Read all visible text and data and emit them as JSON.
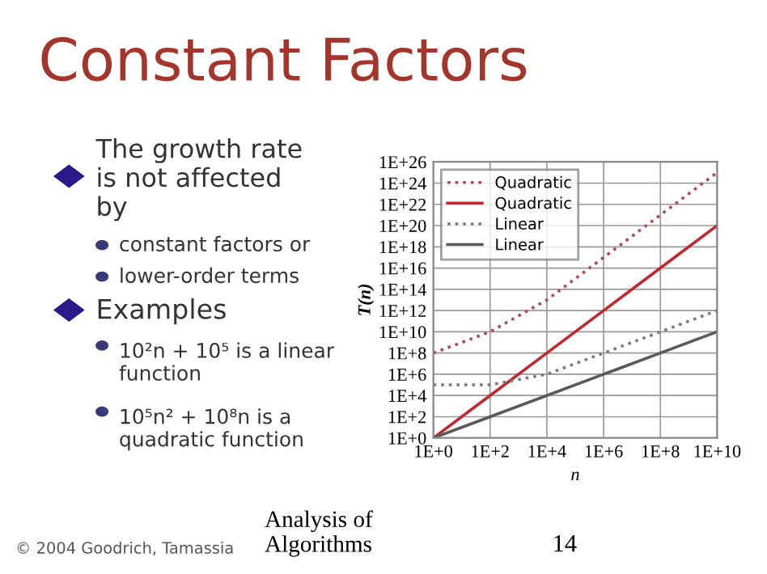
{
  "chart_data": {
    "type": "line",
    "title": "Constant Factors",
    "xlabel": "n",
    "ylabel": "T(n)",
    "x": [
      1,
      100,
      10000,
      1000000,
      100000000,
      10000000000
    ],
    "series": [
      {
        "name": "Quadratic",
        "color": "#b04a55",
        "line_style": "dotted",
        "values": [
          100000000.0,
          10000000000.0,
          10000000000000.0,
          1e+17,
          1e+21,
          1e+25
        ]
      },
      {
        "name": "Quadratic",
        "color": "#c0282e",
        "line_style": "solid",
        "values": [
          1,
          10000.0,
          100000000.0,
          1000000000000.0,
          1e+16,
          1e+20
        ]
      },
      {
        "name": "Linear",
        "color": "#7a7a7a",
        "line_style": "dotted",
        "values": [
          100000.0,
          100000.0,
          1000000.0,
          100000000.0,
          10000000000.0,
          1000000000000.0
        ]
      },
      {
        "name": "Linear",
        "color": "#5a5a5a",
        "line_style": "solid",
        "values": [
          1,
          100.0,
          10000.0,
          1000000.0,
          100000000.0,
          10000000000.0
        ]
      }
    ],
    "log": "xy",
    "xlim": [
      1,
      10000000000.0
    ],
    "ylim": [
      1,
      1e+26
    ],
    "xticks": [
      {
        "value": 1,
        "label": "1E+0"
      },
      {
        "value": 100,
        "label": "1E+2"
      },
      {
        "value": 10000,
        "label": "1E+4"
      },
      {
        "value": 1000000,
        "label": "1E+6"
      },
      {
        "value": 100000000,
        "label": "1E+8"
      },
      {
        "value": 10000000000,
        "label": "1E+10"
      }
    ],
    "yticks": [
      {
        "value": 1,
        "label": "1E+0"
      },
      {
        "value": 100.0,
        "label": "1E+2"
      },
      {
        "value": 10000.0,
        "label": "1E+4"
      },
      {
        "value": 1000000.0,
        "label": "1E+6"
      },
      {
        "value": 100000000.0,
        "label": "1E+8"
      },
      {
        "value": 10000000000.0,
        "label": "1E+10"
      },
      {
        "value": 1000000000000.0,
        "label": "1E+12"
      },
      {
        "value": 100000000000000.0,
        "label": "1E+14"
      },
      {
        "value": 1e+16,
        "label": "1E+16"
      },
      {
        "value": 1e+18,
        "label": "1E+18"
      },
      {
        "value": 1e+20,
        "label": "1E+20"
      },
      {
        "value": 1e+22,
        "label": "1E+22"
      },
      {
        "value": 1e+24,
        "label": "1E+24"
      },
      {
        "value": 1e+26,
        "label": "1E+26"
      }
    ],
    "grid": true,
    "legend": "top left",
    "marker": "none",
    "annotations": [
      "The growth rate is not affected by",
      "constant factors or",
      "lower-order terms",
      "Examples",
      "10²n + 10⁵ is a linear function",
      "10⁵n² + 10⁸n is a quadratic function",
      "© 2004 Goodrich, Tamassia",
      "Analysis of Algorithms",
      "14"
    ]
  }
}
